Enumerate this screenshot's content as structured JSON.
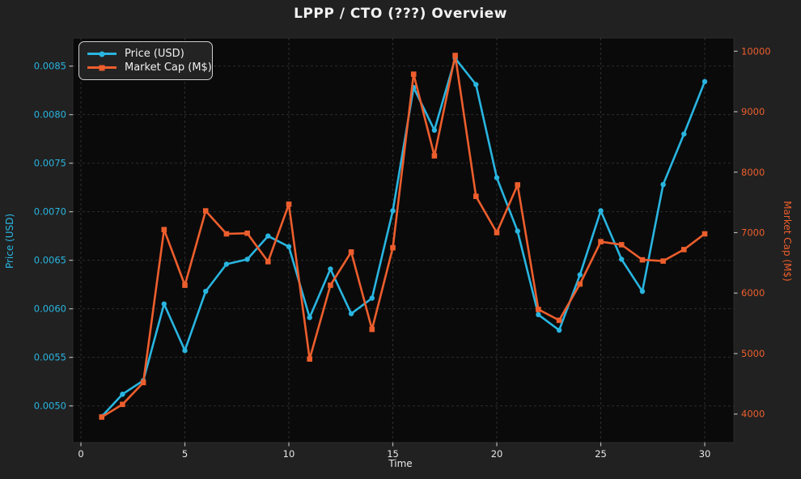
{
  "header": {
    "title": "LPPP / CTO (???) Overview"
  },
  "colors": {
    "background": "#212121",
    "plot_background": "#0a0a0a",
    "grid": "#999999",
    "price_series": "#29b5e0",
    "market_cap_series": "#ed5e2d",
    "tick_text": "#e8e8e8",
    "title_text": "#f2f2f2",
    "legend_border": "#cfcfcf"
  },
  "legend": {
    "position": "upper-left",
    "items": [
      {
        "label": "Price (USD)",
        "color": "#29b5e0",
        "marker": "circle"
      },
      {
        "label": "Market Cap (M$)",
        "color": "#ed5e2d",
        "marker": "square"
      }
    ]
  },
  "chart_data": {
    "type": "line",
    "title": "LPPP / CTO (???) Overview",
    "xlabel": "Time",
    "ylabel_left": "Price (USD)",
    "ylabel_right": "Market Cap (M$)",
    "grid": "dashed, on (left-axis and x-axis ticks)",
    "x": [
      1,
      2,
      3,
      4,
      5,
      6,
      7,
      8,
      9,
      10,
      11,
      12,
      13,
      14,
      15,
      16,
      17,
      18,
      19,
      20,
      21,
      22,
      23,
      24,
      25,
      26,
      27,
      28,
      29,
      30
    ],
    "series": [
      {
        "name": "Price (USD)",
        "axis": "left",
        "color": "#29b5e0",
        "marker": "circle",
        "values": [
          0.00489,
          0.00512,
          0.00526,
          0.00605,
          0.00557,
          0.00618,
          0.00646,
          0.00651,
          0.00675,
          0.00664,
          0.00591,
          0.00641,
          0.00595,
          0.00611,
          0.00701,
          0.00828,
          0.00784,
          0.00858,
          0.00831,
          0.00735,
          0.0068,
          0.00594,
          0.00578,
          0.00635,
          0.00701,
          0.00651,
          0.00618,
          0.00728,
          0.0078,
          0.00834
        ]
      },
      {
        "name": "Market Cap (M$)",
        "axis": "right",
        "color": "#ed5e2d",
        "marker": "square",
        "values": [
          3950,
          4160,
          4520,
          7050,
          6130,
          7360,
          6980,
          6990,
          6520,
          7470,
          4910,
          6130,
          6680,
          5400,
          6750,
          9620,
          8270,
          9930,
          7600,
          7000,
          7790,
          5730,
          5550,
          6150,
          6850,
          6800,
          6550,
          6530,
          6720,
          6980
        ]
      }
    ],
    "x_axis": {
      "ticks": [
        0,
        5,
        10,
        15,
        20,
        25,
        30
      ],
      "tick_labels": [
        "0",
        "5",
        "10",
        "15",
        "20",
        "25",
        "30"
      ],
      "range": [
        -0.389,
        31.4
      ]
    },
    "left_axis": {
      "label": "Price (USD)",
      "color": "#29b5e0",
      "ticks": [
        0.005,
        0.0055,
        0.006,
        0.0065,
        0.007,
        0.0075,
        0.008,
        0.0085
      ],
      "tick_labels": [
        "0.0050",
        "0.0055",
        "0.0060",
        "0.0065",
        "0.0070",
        "0.0075",
        "0.0080",
        "0.0085"
      ],
      "range": [
        0.004622,
        0.008789
      ]
    },
    "right_axis": {
      "label": "Market Cap (M$)",
      "color": "#ed5e2d",
      "ticks": [
        4000,
        5000,
        6000,
        7000,
        8000,
        9000,
        10000
      ],
      "tick_labels": [
        "4000",
        "5000",
        "6000",
        "7000",
        "8000",
        "9000",
        "10000"
      ],
      "range": [
        3528,
        10218
      ]
    }
  }
}
